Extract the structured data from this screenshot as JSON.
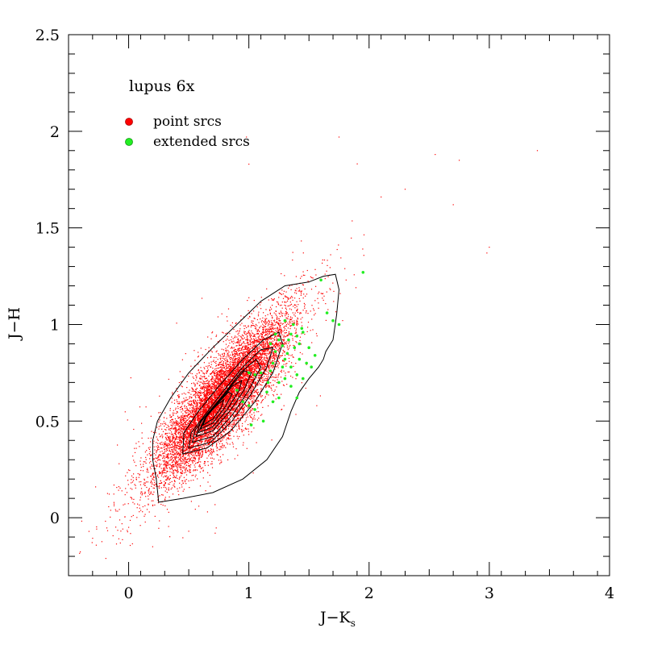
{
  "chart_data": {
    "type": "scatter",
    "title": "",
    "xlabel_main": "J−K",
    "xlabel_sub": "s",
    "ylabel": "J−H",
    "xlim": [
      -0.5,
      4.0
    ],
    "ylim": [
      -0.3,
      2.5
    ],
    "x_ticks": [
      0,
      1,
      2,
      3,
      4
    ],
    "x_tick_labels": [
      "0",
      "1",
      "2",
      "3",
      "4"
    ],
    "y_ticks": [
      0,
      0.5,
      1,
      1.5,
      2,
      2.5
    ],
    "y_tick_labels": [
      "0",
      "0.5",
      "1",
      "1.5",
      "2",
      "2.5"
    ],
    "grid": false,
    "legend": {
      "title": "lupus 6x",
      "placement": "top-left",
      "entries": [
        {
          "label": "point srcs",
          "color": "#ff0000"
        },
        {
          "label": "extended srcs",
          "color": "#22ee22"
        }
      ]
    },
    "series": [
      {
        "name": "point srcs",
        "color": "#ff0000",
        "distribution": {
          "center": [
            0.78,
            0.62
          ],
          "major_axis_direction": [
            1.0,
            0.72
          ],
          "sd_major": 0.32,
          "sd_minor": 0.085,
          "count": 9000
        },
        "outliers": [
          [
            2.55,
            1.88
          ],
          [
            2.75,
            1.85
          ],
          [
            3.4,
            1.9
          ],
          [
            2.7,
            1.62
          ],
          [
            3.0,
            1.4
          ],
          [
            2.98,
            1.37
          ],
          [
            0.0,
            -0.05
          ],
          [
            0.2,
            -0.15
          ],
          [
            0.5,
            -0.07
          ],
          [
            0.72,
            -0.08
          ],
          [
            1.0,
            1.83
          ],
          [
            0.98,
            1.97
          ],
          [
            1.75,
            1.97
          ],
          [
            2.3,
            1.7
          ],
          [
            2.1,
            1.66
          ]
        ]
      },
      {
        "name": "extended srcs",
        "color": "#22ee22",
        "points": [
          [
            1.95,
            1.27
          ],
          [
            1.65,
            1.06
          ],
          [
            1.7,
            1.02
          ],
          [
            1.75,
            1.0
          ],
          [
            1.6,
            1.23
          ],
          [
            1.3,
            1.02
          ],
          [
            1.35,
            0.95
          ],
          [
            1.4,
            0.94
          ],
          [
            1.42,
            0.9
          ],
          [
            1.45,
            0.96
          ],
          [
            1.38,
            0.88
          ],
          [
            1.25,
            0.92
          ],
          [
            1.28,
            0.89
          ],
          [
            1.32,
            0.85
          ],
          [
            1.2,
            0.8
          ],
          [
            1.22,
            0.86
          ],
          [
            1.3,
            0.82
          ],
          [
            1.35,
            0.78
          ],
          [
            1.4,
            0.74
          ],
          [
            1.45,
            0.72
          ],
          [
            1.5,
            0.88
          ],
          [
            1.55,
            0.84
          ],
          [
            1.3,
            0.72
          ],
          [
            1.25,
            0.7
          ],
          [
            1.18,
            0.76
          ],
          [
            1.1,
            0.75
          ],
          [
            1.05,
            0.74
          ],
          [
            1.0,
            0.75
          ],
          [
            1.15,
            0.65
          ],
          [
            1.2,
            0.6
          ],
          [
            1.25,
            0.62
          ],
          [
            1.35,
            0.68
          ],
          [
            1.4,
            0.62
          ],
          [
            0.95,
            0.6
          ],
          [
            1.0,
            0.58
          ],
          [
            1.05,
            0.56
          ],
          [
            0.9,
            0.66
          ],
          [
            1.02,
            0.48
          ],
          [
            1.12,
            0.5
          ],
          [
            1.48,
            0.8
          ],
          [
            1.52,
            0.78
          ],
          [
            1.42,
            0.82
          ],
          [
            1.33,
            0.92
          ],
          [
            1.18,
            0.9
          ],
          [
            1.22,
            0.95
          ],
          [
            1.37,
            1.0
          ],
          [
            1.44,
            0.98
          ],
          [
            1.28,
            0.78
          ],
          [
            1.16,
            0.7
          ]
        ]
      }
    ],
    "contours": [
      [
        [
          0.25,
          0.08
        ],
        [
          0.45,
          0.1
        ],
        [
          0.7,
          0.13
        ],
        [
          0.95,
          0.2
        ],
        [
          1.15,
          0.3
        ],
        [
          1.28,
          0.42
        ],
        [
          1.35,
          0.55
        ],
        [
          1.42,
          0.65
        ],
        [
          1.5,
          0.72
        ],
        [
          1.58,
          0.78
        ],
        [
          1.62,
          0.82
        ],
        [
          1.64,
          0.86
        ],
        [
          1.7,
          0.92
        ],
        [
          1.73,
          1.05
        ],
        [
          1.75,
          1.18
        ],
        [
          1.72,
          1.26
        ],
        [
          1.62,
          1.25
        ],
        [
          1.5,
          1.22
        ],
        [
          1.3,
          1.2
        ],
        [
          1.1,
          1.12
        ],
        [
          0.9,
          1.0
        ],
        [
          0.7,
          0.88
        ],
        [
          0.5,
          0.75
        ],
        [
          0.35,
          0.62
        ],
        [
          0.24,
          0.5
        ],
        [
          0.2,
          0.4
        ],
        [
          0.2,
          0.3
        ],
        [
          0.23,
          0.2
        ],
        [
          0.25,
          0.08
        ]
      ],
      [
        [
          0.45,
          0.33
        ],
        [
          0.65,
          0.36
        ],
        [
          0.85,
          0.45
        ],
        [
          1.05,
          0.6
        ],
        [
          1.2,
          0.75
        ],
        [
          1.28,
          0.9
        ],
        [
          1.25,
          0.96
        ],
        [
          1.12,
          0.92
        ],
        [
          0.95,
          0.82
        ],
        [
          0.75,
          0.68
        ],
        [
          0.58,
          0.55
        ],
        [
          0.46,
          0.44
        ],
        [
          0.45,
          0.33
        ]
      ],
      [
        [
          0.5,
          0.36
        ],
        [
          0.68,
          0.39
        ],
        [
          0.86,
          0.5
        ],
        [
          1.02,
          0.64
        ],
        [
          1.15,
          0.78
        ],
        [
          1.2,
          0.88
        ],
        [
          1.1,
          0.87
        ],
        [
          0.95,
          0.78
        ],
        [
          0.78,
          0.65
        ],
        [
          0.62,
          0.52
        ],
        [
          0.52,
          0.44
        ],
        [
          0.5,
          0.36
        ]
      ],
      [
        [
          0.53,
          0.39
        ],
        [
          0.7,
          0.42
        ],
        [
          0.86,
          0.53
        ],
        [
          1.0,
          0.66
        ],
        [
          1.1,
          0.78
        ],
        [
          1.06,
          0.82
        ],
        [
          0.93,
          0.75
        ],
        [
          0.78,
          0.63
        ],
        [
          0.63,
          0.52
        ],
        [
          0.55,
          0.45
        ],
        [
          0.53,
          0.39
        ]
      ],
      [
        [
          0.56,
          0.42
        ],
        [
          0.7,
          0.45
        ],
        [
          0.84,
          0.55
        ],
        [
          0.96,
          0.66
        ],
        [
          1.02,
          0.75
        ],
        [
          0.96,
          0.76
        ],
        [
          0.85,
          0.68
        ],
        [
          0.72,
          0.58
        ],
        [
          0.6,
          0.5
        ],
        [
          0.56,
          0.42
        ]
      ],
      [
        [
          0.58,
          0.44
        ],
        [
          0.7,
          0.47
        ],
        [
          0.82,
          0.56
        ],
        [
          0.92,
          0.66
        ],
        [
          0.94,
          0.71
        ],
        [
          0.86,
          0.68
        ],
        [
          0.74,
          0.59
        ],
        [
          0.63,
          0.51
        ],
        [
          0.58,
          0.44
        ]
      ],
      [
        [
          0.6,
          0.46
        ],
        [
          0.7,
          0.49
        ],
        [
          0.8,
          0.57
        ],
        [
          0.86,
          0.64
        ],
        [
          0.83,
          0.65
        ],
        [
          0.74,
          0.59
        ],
        [
          0.64,
          0.52
        ],
        [
          0.6,
          0.46
        ]
      ],
      [
        [
          0.62,
          0.48
        ],
        [
          0.7,
          0.51
        ],
        [
          0.77,
          0.57
        ],
        [
          0.79,
          0.61
        ],
        [
          0.73,
          0.58
        ],
        [
          0.65,
          0.53
        ],
        [
          0.62,
          0.48
        ]
      ]
    ]
  }
}
